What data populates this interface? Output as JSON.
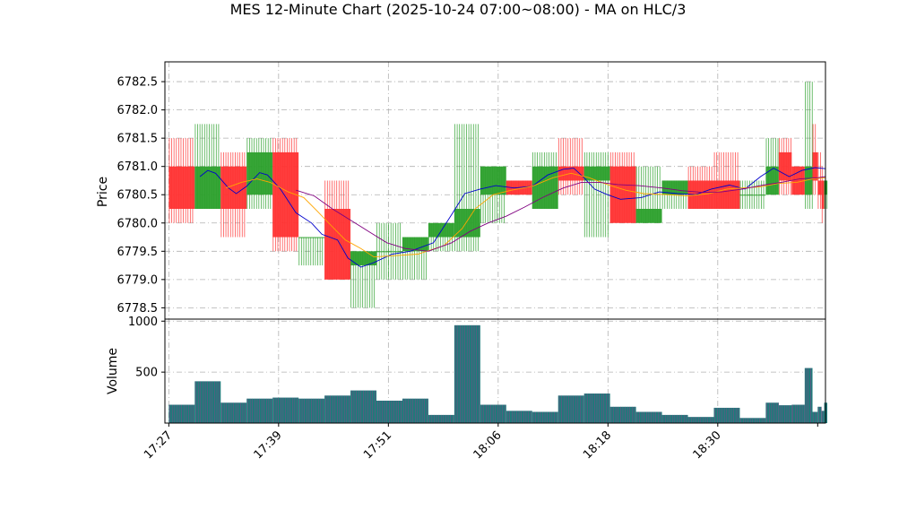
{
  "chart_data": {
    "type": "ohlc",
    "title": "MES 12-Minute Chart (2025-10-24 07:00~08:00) - MA on HLC/3",
    "price_panel": {
      "ylabel": "Price",
      "ylim": [
        6778.3,
        6782.85
      ],
      "yticks": [
        "6778.5",
        "6779.0",
        "6779.5",
        "6780.0",
        "6780.5",
        "6781.0",
        "6781.5",
        "6782.0",
        "6782.5"
      ],
      "ytick_values": [
        6778.5,
        6779.0,
        6779.5,
        6780.0,
        6780.5,
        6781.0,
        6781.5,
        6782.0,
        6782.5
      ],
      "grid": true
    },
    "volume_panel": {
      "ylabel": "Volume",
      "ylim": [
        0,
        1020
      ],
      "yticks": [
        "500",
        "1000"
      ],
      "ytick_values": [
        500,
        1000
      ],
      "grid": true
    },
    "xlim": [
      -0.15,
      25.3
    ],
    "xticks": [
      "17:27",
      "17:39",
      "17:51",
      "18:06",
      "18:18",
      "18:30"
    ],
    "xtick_positions": [
      0,
      4.23,
      8.46,
      12.69,
      16.92,
      21.15
    ],
    "colors": {
      "up": "#2ca02c",
      "down": "#ff3333",
      "ma_fast": "#0000cc",
      "ma_mid": "#ffa500",
      "ma_slow": "#800080",
      "volume": "#1f7a7a",
      "volume_edge": "#9b3b8c"
    },
    "candles": [
      {
        "t": 0,
        "open": 6781.0,
        "high": 6781.5,
        "low": 6780.0,
        "close": 6780.25,
        "volume": 180
      },
      {
        "t": 1,
        "open": 6780.25,
        "high": 6781.75,
        "low": 6780.25,
        "close": 6781.0,
        "volume": 410
      },
      {
        "t": 2,
        "open": 6781.0,
        "high": 6781.25,
        "low": 6779.75,
        "close": 6780.25,
        "volume": 200
      },
      {
        "t": 3,
        "open": 6780.5,
        "high": 6781.5,
        "low": 6780.25,
        "close": 6781.25,
        "volume": 240
      },
      {
        "t": 4,
        "open": 6781.25,
        "high": 6781.5,
        "low": 6779.5,
        "close": 6779.75,
        "volume": 250
      },
      {
        "t": 5,
        "open": 6779.75,
        "high": 6779.75,
        "low": 6779.25,
        "close": 6779.75,
        "volume": 240
      },
      {
        "t": 6,
        "open": 6780.25,
        "high": 6780.75,
        "low": 6779.0,
        "close": 6779.0,
        "volume": 270
      },
      {
        "t": 7,
        "open": 6779.25,
        "high": 6779.5,
        "low": 6778.5,
        "close": 6779.5,
        "volume": 320
      },
      {
        "t": 8,
        "open": 6779.5,
        "high": 6780.0,
        "low": 6779.0,
        "close": 6779.5,
        "volume": 220
      },
      {
        "t": 9,
        "open": 6779.5,
        "high": 6779.75,
        "low": 6779.0,
        "close": 6779.75,
        "volume": 240
      },
      {
        "t": 10,
        "open": 6779.75,
        "high": 6780.0,
        "low": 6779.5,
        "close": 6780.0,
        "volume": 80
      },
      {
        "t": 11,
        "open": 6779.75,
        "high": 6781.75,
        "low": 6779.5,
        "close": 6780.25,
        "volume": 960
      },
      {
        "t": 12,
        "open": 6780.5,
        "high": 6781.0,
        "low": 6780.0,
        "close": 6781.0,
        "volume": 180
      },
      {
        "t": 13,
        "open": 6780.75,
        "high": 6780.75,
        "low": 6780.5,
        "close": 6780.5,
        "volume": 120
      },
      {
        "t": 14,
        "open": 6780.25,
        "high": 6781.25,
        "low": 6780.25,
        "close": 6781.0,
        "volume": 110
      },
      {
        "t": 15,
        "open": 6781.0,
        "high": 6781.5,
        "low": 6780.5,
        "close": 6780.75,
        "volume": 270
      },
      {
        "t": 16,
        "open": 6780.75,
        "high": 6781.25,
        "low": 6779.75,
        "close": 6781.0,
        "volume": 290
      },
      {
        "t": 17,
        "open": 6781.0,
        "high": 6781.25,
        "low": 6780.0,
        "close": 6780.0,
        "volume": 160
      },
      {
        "t": 18,
        "open": 6780.0,
        "high": 6781.0,
        "low": 6780.0,
        "close": 6780.25,
        "volume": 110
      },
      {
        "t": 19,
        "open": 6780.5,
        "high": 6780.75,
        "low": 6780.25,
        "close": 6780.75,
        "volume": 80
      },
      {
        "t": 20,
        "open": 6780.75,
        "high": 6781.0,
        "low": 6780.25,
        "close": 6780.25,
        "volume": 60
      },
      {
        "t": 21,
        "open": 6780.75,
        "high": 6781.25,
        "low": 6780.25,
        "close": 6780.25,
        "volume": 150
      },
      {
        "t": 22,
        "open": 6780.5,
        "high": 6780.75,
        "low": 6780.25,
        "close": 6780.5,
        "volume": 50
      },
      {
        "t": 23,
        "open": 6780.5,
        "high": 6781.5,
        "low": 6780.5,
        "close": 6781.0,
        "volume": 200
      },
      {
        "t": 23.5,
        "open": 6781.25,
        "high": 6781.5,
        "low": 6780.5,
        "close": 6780.75,
        "volume": 175
      },
      {
        "t": 24,
        "open": 6781.0,
        "high": 6781.0,
        "low": 6780.5,
        "close": 6780.5,
        "volume": 180
      },
      {
        "t": 24.5,
        "open": 6780.5,
        "high": 6782.5,
        "low": 6780.25,
        "close": 6781.0,
        "volume": 540
      },
      {
        "t": 24.8,
        "open": 6781.25,
        "high": 6781.75,
        "low": 6780.5,
        "close": 6780.75,
        "volume": 110
      },
      {
        "t": 25.0,
        "open": 6780.75,
        "high": 6781.25,
        "low": 6780.25,
        "close": 6780.5,
        "volume": 160
      },
      {
        "t": 25.15,
        "open": 6780.75,
        "high": 6781.0,
        "low": 6780.0,
        "close": 6780.25,
        "volume": 120
      },
      {
        "t": 25.25,
        "open": 6780.5,
        "high": 6780.75,
        "low": 6780.25,
        "close": 6780.75,
        "volume": 200
      }
    ],
    "ma_fast": [
      [
        1.2,
        6780.82
      ],
      [
        1.5,
        6780.93
      ],
      [
        1.8,
        6780.88
      ],
      [
        2.3,
        6780.62
      ],
      [
        2.6,
        6780.52
      ],
      [
        3.0,
        6780.65
      ],
      [
        3.5,
        6780.89
      ],
      [
        3.8,
        6780.85
      ],
      [
        4.3,
        6780.6
      ],
      [
        4.9,
        6780.18
      ],
      [
        5.5,
        6780.0
      ],
      [
        5.9,
        6779.8
      ],
      [
        6.5,
        6779.7
      ],
      [
        6.9,
        6779.38
      ],
      [
        7.4,
        6779.22
      ],
      [
        7.9,
        6779.3
      ],
      [
        8.6,
        6779.45
      ],
      [
        9.3,
        6779.5
      ],
      [
        10.2,
        6779.65
      ],
      [
        10.9,
        6780.15
      ],
      [
        11.4,
        6780.52
      ],
      [
        12.0,
        6780.6
      ],
      [
        12.6,
        6780.66
      ],
      [
        13.3,
        6780.62
      ],
      [
        14.0,
        6780.65
      ],
      [
        14.6,
        6780.85
      ],
      [
        15.2,
        6780.95
      ],
      [
        15.6,
        6780.97
      ],
      [
        16.0,
        6780.8
      ],
      [
        16.4,
        6780.6
      ],
      [
        16.9,
        6780.5
      ],
      [
        17.4,
        6780.42
      ],
      [
        18.2,
        6780.45
      ],
      [
        18.9,
        6780.55
      ],
      [
        19.6,
        6780.52
      ],
      [
        20.3,
        6780.5
      ],
      [
        20.9,
        6780.6
      ],
      [
        21.6,
        6780.67
      ],
      [
        22.2,
        6780.6
      ],
      [
        22.8,
        6780.82
      ],
      [
        23.3,
        6780.97
      ],
      [
        23.9,
        6780.82
      ],
      [
        24.4,
        6780.93
      ],
      [
        24.9,
        6780.98
      ],
      [
        25.3,
        6780.96
      ]
    ],
    "ma_mid": [
      [
        2.2,
        6780.62
      ],
      [
        2.8,
        6780.72
      ],
      [
        3.4,
        6780.78
      ],
      [
        3.9,
        6780.72
      ],
      [
        4.6,
        6780.55
      ],
      [
        5.2,
        6780.45
      ],
      [
        5.7,
        6780.22
      ],
      [
        6.2,
        6779.98
      ],
      [
        6.8,
        6779.7
      ],
      [
        7.4,
        6779.55
      ],
      [
        7.9,
        6779.4
      ],
      [
        8.6,
        6779.42
      ],
      [
        9.6,
        6779.45
      ],
      [
        10.6,
        6779.6
      ],
      [
        11.3,
        6779.9
      ],
      [
        11.8,
        6780.25
      ],
      [
        12.5,
        6780.5
      ],
      [
        13.2,
        6780.58
      ],
      [
        14.0,
        6780.65
      ],
      [
        14.8,
        6780.8
      ],
      [
        15.5,
        6780.88
      ],
      [
        16.2,
        6780.8
      ],
      [
        16.9,
        6780.68
      ],
      [
        17.6,
        6780.58
      ],
      [
        18.3,
        6780.52
      ],
      [
        19.2,
        6780.5
      ],
      [
        20.0,
        6780.48
      ],
      [
        20.8,
        6780.52
      ],
      [
        21.5,
        6780.6
      ],
      [
        22.1,
        6780.62
      ],
      [
        22.8,
        6780.64
      ],
      [
        23.5,
        6780.7
      ],
      [
        24.2,
        6780.72
      ],
      [
        24.8,
        6780.78
      ],
      [
        25.3,
        6780.8
      ]
    ],
    "ma_slow": [
      [
        4.9,
        6780.58
      ],
      [
        5.6,
        6780.48
      ],
      [
        6.3,
        6780.25
      ],
      [
        7.0,
        6780.05
      ],
      [
        7.7,
        6779.85
      ],
      [
        8.4,
        6779.65
      ],
      [
        9.1,
        6779.55
      ],
      [
        10.0,
        6779.5
      ],
      [
        10.9,
        6779.65
      ],
      [
        11.6,
        6779.85
      ],
      [
        12.3,
        6780.0
      ],
      [
        13.0,
        6780.12
      ],
      [
        13.7,
        6780.28
      ],
      [
        14.4,
        6780.45
      ],
      [
        15.2,
        6780.62
      ],
      [
        15.9,
        6780.72
      ],
      [
        16.6,
        6780.72
      ],
      [
        17.3,
        6780.68
      ],
      [
        18.1,
        6780.66
      ],
      [
        19.0,
        6780.62
      ],
      [
        19.8,
        6780.57
      ],
      [
        20.6,
        6780.54
      ],
      [
        21.3,
        6780.55
      ],
      [
        22.1,
        6780.6
      ],
      [
        22.9,
        6780.67
      ],
      [
        23.6,
        6780.72
      ],
      [
        24.3,
        6780.78
      ],
      [
        25.0,
        6780.8
      ],
      [
        25.3,
        6780.82
      ]
    ]
  }
}
